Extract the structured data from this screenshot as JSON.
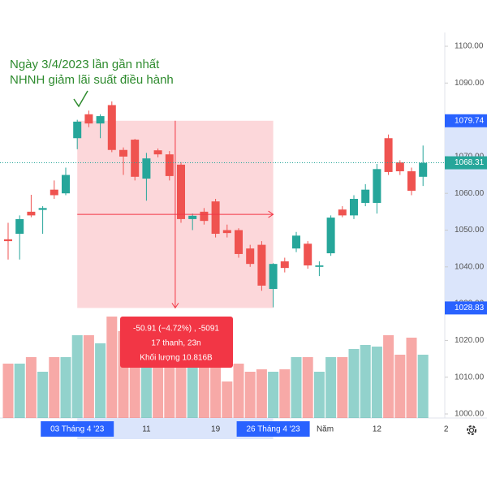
{
  "chart_data": {
    "type": "candlestick",
    "annotation": [
      "Ngày 3/4/2023 lần gần nhất",
      "NHNH giảm lãi suất điều hành"
    ],
    "open": [
      1047.5,
      1049,
      1055,
      1055.5,
      1061,
      1060,
      1075,
      1081.5,
      1079,
      1084,
      1071.8,
      1074.6,
      1064,
      1071.7,
      1070.6,
      1067.8,
      1053,
      1055,
      1057.8,
      1050,
      1050,
      1045,
      1046,
      1034,
      1041.5,
      1045,
      1046.3,
      1040,
      1043.7,
      1055.6,
      1054,
      1057.4,
      1057.4,
      1075,
      1068.4,
      1066,
      1064.5
    ],
    "high": [
      1052,
      1054,
      1059.6,
      1056.5,
      1063.5,
      1067,
      1080,
      1082.5,
      1081.5,
      1085,
      1072.5,
      1074.8,
      1071,
      1072.2,
      1071.5,
      1068.5,
      1054.5,
      1056,
      1058.5,
      1051.5,
      1050.5,
      1046,
      1047,
      1041,
      1042.5,
      1049.5,
      1047,
      1041.5,
      1054,
      1056.5,
      1059.5,
      1062.5,
      1068,
      1076,
      1069,
      1067,
      1073
    ],
    "low": [
      1042,
      1042,
      1053.5,
      1049,
      1058.5,
      1059.5,
      1072,
      1078,
      1075,
      1071.2,
      1065,
      1063.5,
      1058,
      1069.8,
      1063.5,
      1052,
      1050,
      1051.5,
      1048,
      1048,
      1042.5,
      1040,
      1033.5,
      1029,
      1038.5,
      1044,
      1039.5,
      1037.5,
      1043,
      1053.5,
      1053,
      1056.5,
      1054.5,
      1065,
      1065,
      1059.5,
      1062
    ],
    "close": [
      1047,
      1053,
      1054,
      1056,
      1059.5,
      1065,
      1079.5,
      1079,
      1081,
      1071.8,
      1070,
      1064.5,
      1069.5,
      1070.6,
      1064.7,
      1053,
      1053.9,
      1052.5,
      1049,
      1049.2,
      1043.5,
      1040.8,
      1034.9,
      1040.8,
      1039.7,
      1048.5,
      1040.4,
      1040.4,
      1053.4,
      1054,
      1058.5,
      1061,
      1066.6,
      1065.8,
      1066,
      1060.7,
      1068.3
    ],
    "volume": [
      67,
      67,
      75,
      57,
      75,
      75,
      102,
      102,
      92,
      125,
      107,
      75,
      67,
      95,
      80,
      75,
      63,
      90,
      75,
      45,
      67,
      57,
      60,
      57,
      60,
      75,
      75,
      57,
      75,
      75,
      85,
      90,
      88,
      102,
      78,
      99,
      78
    ],
    "ylim": [
      1000,
      1100
    ],
    "yticks": [
      {
        "value": 1000,
        "label": "1000.00"
      },
      {
        "value": 1010,
        "label": "1010.00"
      },
      {
        "value": 1020,
        "label": "1020.00"
      },
      {
        "value": 1030,
        "label": "1030.00"
      },
      {
        "value": 1040,
        "label": "1040.00"
      },
      {
        "value": 1050,
        "label": "1050.00"
      },
      {
        "value": 1060,
        "label": "1060.00"
      },
      {
        "value": 1070,
        "label": "1070.00"
      },
      {
        "value": 1080,
        "label": "1080.00"
      },
      {
        "value": 1090,
        "label": "1090.00"
      },
      {
        "value": 1100,
        "label": "1100.00"
      }
    ],
    "xticks": [
      {
        "value": 6,
        "label": "03 Tháng 4 '23",
        "highlight": true
      },
      {
        "value": 12,
        "label": "11"
      },
      {
        "value": 18,
        "label": "19"
      },
      {
        "value": 23,
        "label": "26 Tháng 4 '23",
        "highlight": true
      },
      {
        "value": 27.5,
        "label": "Năm"
      },
      {
        "value": 32,
        "label": "12"
      },
      {
        "value": 38,
        "label": "2"
      }
    ],
    "markers": [
      {
        "value": 1079.74,
        "color": "#2962ff"
      },
      {
        "value": 1068.31,
        "color": "#26a69a"
      },
      {
        "value": 1028.83,
        "color": "#2962ff"
      }
    ],
    "measure": {
      "start": 6,
      "end": 23,
      "high": 1079.74,
      "low": 1028.83,
      "text": [
        "-50.91 (−4.72%) , -5091",
        "17 thanh, 23n",
        "Khối lượng 10.816B"
      ]
    },
    "up_color": "#26a69a",
    "down_color": "#ef5350"
  }
}
